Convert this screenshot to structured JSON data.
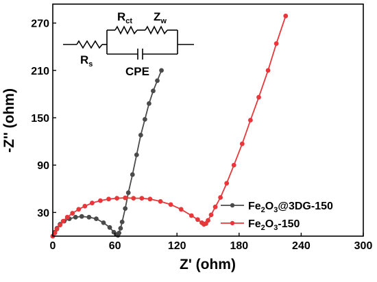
{
  "chart_data": {
    "type": "scatter",
    "xlabel": "Z' (ohm)",
    "ylabel": "-Z'' (ohm)",
    "xlim": [
      0,
      300
    ],
    "ylim": [
      0,
      294
    ],
    "xticks": [
      0,
      60,
      120,
      180,
      240,
      300
    ],
    "yticks": [
      30,
      90,
      150,
      210,
      270
    ],
    "legend_position": "bottom-right",
    "series": [
      {
        "name_parts": [
          "Fe",
          "2",
          "O",
          "3",
          "@3DG-150"
        ],
        "color": "#4a4a4a",
        "x": [
          0,
          2,
          4,
          7,
          11,
          16,
          22,
          28,
          35,
          42,
          49,
          55,
          59,
          61.5,
          63,
          64,
          65.5,
          67,
          70,
          73,
          77,
          81,
          85,
          89,
          93,
          97,
          101,
          105
        ],
        "y": [
          0,
          5,
          10,
          15,
          19,
          22,
          24,
          25,
          24,
          22,
          17,
          11,
          5,
          2,
          1,
          4,
          10,
          18,
          35,
          55,
          78,
          103,
          128,
          148,
          168,
          184,
          197,
          210
        ]
      },
      {
        "name_parts": [
          "Fe",
          "2",
          "O",
          "3",
          "-150"
        ],
        "color": "#e8363a",
        "x": [
          0,
          2,
          4,
          7,
          10,
          14,
          19,
          25,
          31,
          38,
          46,
          54,
          62,
          70,
          78,
          86,
          94,
          104,
          114,
          124,
          134,
          140,
          144,
          146,
          148,
          150,
          153,
          157,
          162,
          168,
          175,
          183,
          191,
          199,
          208,
          216,
          225
        ],
        "y": [
          0,
          4,
          9,
          14,
          19,
          24,
          29,
          34,
          38,
          42,
          45,
          47,
          48,
          48.5,
          48,
          48,
          47,
          44,
          40,
          34,
          26,
          21,
          17,
          15,
          16,
          20,
          27,
          37,
          49,
          67,
          90,
          117,
          147,
          176,
          210,
          244,
          279
        ]
      }
    ]
  },
  "circuit": {
    "rs_main": "R",
    "rs_sub": "s",
    "rct_main": "R",
    "rct_sub": "ct",
    "zw_main": "Z",
    "zw_sub": "w",
    "cpe": "CPE"
  }
}
